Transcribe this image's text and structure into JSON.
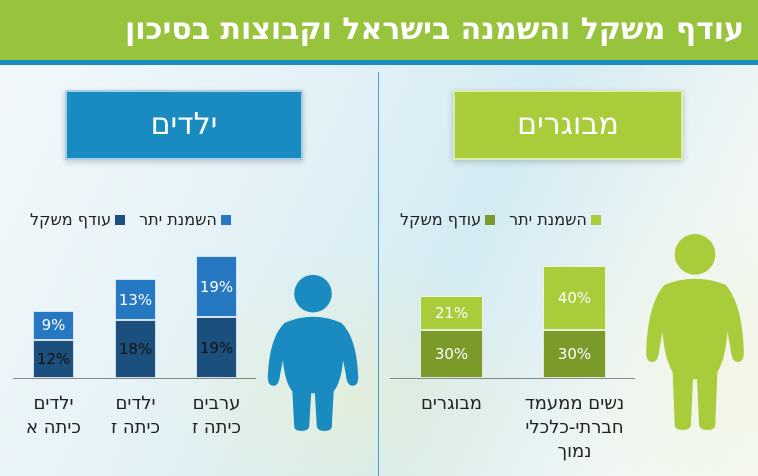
{
  "title": "עודף משקל והשמנה בישראל וקבוצות בסיכון",
  "colors": {
    "title_bg": "#98c33d",
    "kids": "#1a8bc0",
    "adults": "#a9cc3a"
  },
  "kids": {
    "header": "ילדים",
    "legend": {
      "obesity": "השמנת יתר",
      "overweight": "עודף משקל"
    }
  },
  "adults": {
    "header": "מבוגרים",
    "legend": {
      "obesity": "השמנת יתר",
      "overweight": "עודף משקל"
    }
  },
  "chart_data": [
    {
      "type": "bar",
      "stacked": true,
      "categories": [
        "ילדים כיתה א",
        "ילדים כיתה ז",
        "ערבים כיתה ז"
      ],
      "series": [
        {
          "name": "עודף משקל",
          "values": [
            12,
            18,
            19
          ],
          "color": "#1b4f7d"
        },
        {
          "name": "השמנת יתר",
          "values": [
            9,
            13,
            19
          ],
          "color": "#2678c2"
        }
      ],
      "labels": [
        [
          "ילדים",
          "כיתה א"
        ],
        [
          "ילדים",
          "כיתה ז"
        ],
        [
          "ערבים",
          "כיתה ז"
        ]
      ]
    },
    {
      "type": "bar",
      "stacked": true,
      "categories": [
        "מבוגרים",
        "נשים ממעמד חברתי-כלכלי נמוך"
      ],
      "series": [
        {
          "name": "עודף משקל",
          "values": [
            30,
            30
          ],
          "color": "#7a9a2a"
        },
        {
          "name": "השמנת יתר",
          "values": [
            21,
            40
          ],
          "color": "#a9cc3a"
        }
      ],
      "labels": [
        [
          "מבוגרים"
        ],
        [
          "נשים ממעמד",
          "חברתי-כלכלי",
          "נמוך"
        ]
      ]
    }
  ]
}
